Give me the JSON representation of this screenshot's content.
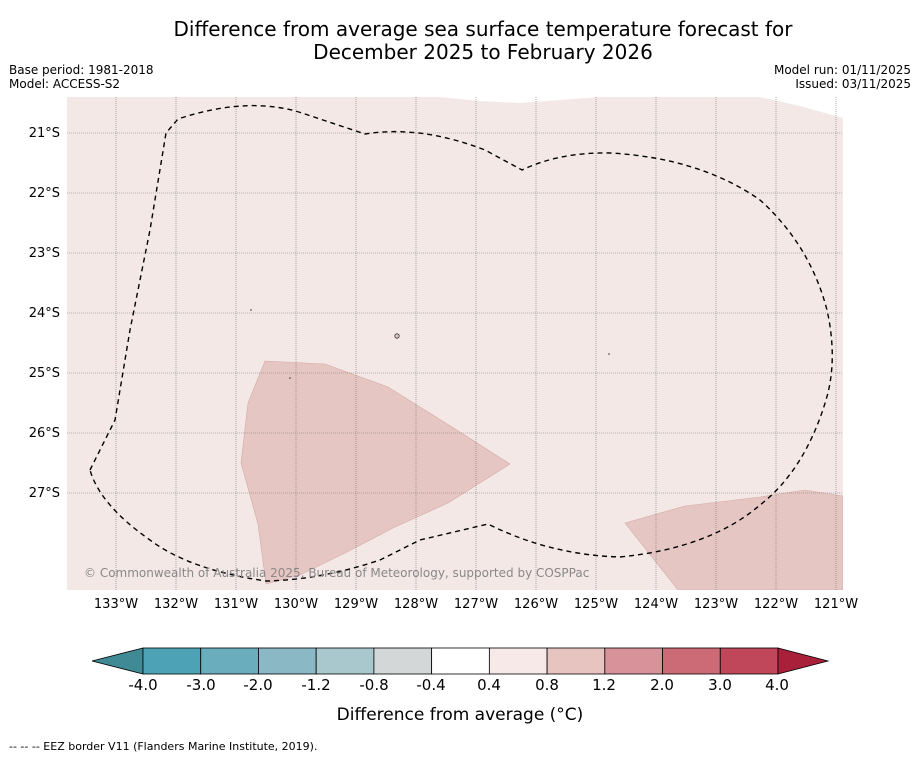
{
  "title_line1": "Difference from average sea surface temperature forecast for",
  "title_line2": "December 2025 to February 2026",
  "base_period": "Base period: 1981-2018",
  "model": "Model: ACCESS-S2",
  "model_run": "Model run: 01/11/2025",
  "issued": "Issued: 03/11/2025",
  "latitudes": [
    "21°S",
    "22°S",
    "23°S",
    "24°S",
    "25°S",
    "26°S",
    "27°S"
  ],
  "longitudes": [
    "133°W",
    "132°W",
    "131°W",
    "130°W",
    "129°W",
    "128°W",
    "127°W",
    "126°W",
    "125°W",
    "124°W",
    "123°W",
    "122°W",
    "121°W"
  ],
  "copyright": "© Commonwealth of Australia 2025, Bureau of Meteorology, supported by COSPPac",
  "colorbar": {
    "title": "Difference from average (°C)",
    "labels": [
      "-4.0",
      "-3.0",
      "-2.0",
      "-1.2",
      "-0.8",
      "-0.4",
      "0.4",
      "0.8",
      "1.2",
      "2.0",
      "3.0",
      "4.0"
    ],
    "colors": [
      "#4da3b5",
      "#6aadbd",
      "#8ab8c4",
      "#a9c8cd",
      "#d3d7d8",
      "#ffffff",
      "#f6e9e8",
      "#e7c4c0",
      "#d8939a",
      "#cc6b76",
      "#c0475a"
    ],
    "under_color": "#3f8a95",
    "over_color": "#a8203a"
  },
  "map_colors": {
    "background": "#f4e8e7",
    "warm_patch": "#e6c6c2",
    "eez_line": "#000000"
  },
  "footnote": "--  --  -- EEZ border V11 (Flanders Marine Institute, 2019)."
}
